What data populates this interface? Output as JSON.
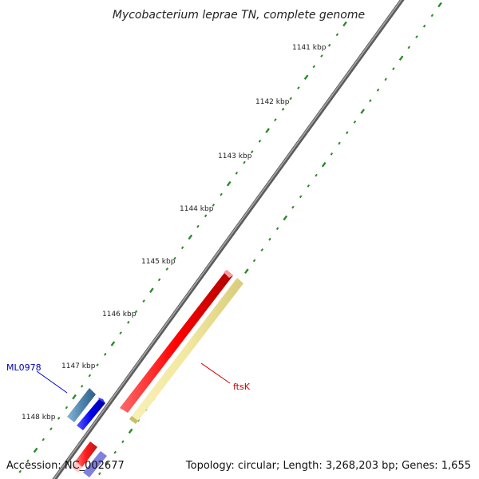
{
  "title": "Mycobacterium leprae TN, complete genome",
  "footer": {
    "accession": "Accession: NC_002677",
    "topology": "Topology: circular; Length: 3,268,203 bp; Genes: 1,655"
  },
  "ticks": [
    "1141 kbp",
    "1142 kbp",
    "1143 kbp",
    "1144 kbp",
    "1145 kbp",
    "1146 kbp",
    "1147 kbp",
    "1148 kbp"
  ],
  "genes": [
    {
      "name": "ftsK",
      "label_color": "#cc0000"
    },
    {
      "name": "ML0978",
      "label_color": "#0000aa"
    }
  ],
  "colors": {
    "backbone": "#777777",
    "scale": "#2a8a2a",
    "forward_cds": "#ff0000",
    "reverse_cds": "#0000ee",
    "feature_highlight": "#f2e8a0",
    "feature_steel": "#4f86b0"
  }
}
